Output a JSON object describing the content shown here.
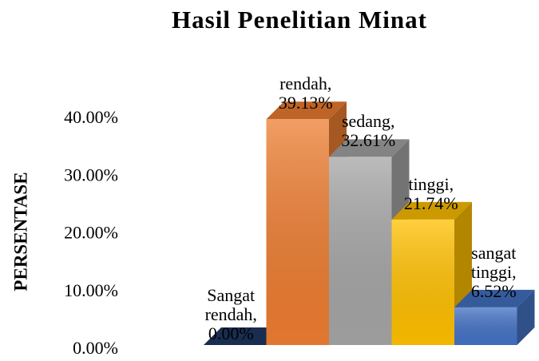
{
  "chart_data": {
    "type": "bar3d",
    "title": "Hasil Penelitian Minat",
    "ylabel": "PERSENTASE",
    "values": [
      0,
      39.13,
      32.61,
      21.74,
      6.52
    ],
    "value_labels": [
      "Sangat rendah, 0.00%",
      "rendah, 39.13%",
      "sedang, 32.61%",
      "tinggi, 21.74%",
      "sangat tinggi, 6.52%"
    ],
    "colors": [
      "#1f3864",
      "#ed7d31",
      "#a5a5a5",
      "#ffc000",
      "#4472c4"
    ],
    "ylim": [
      0,
      40
    ],
    "yticks": [
      {
        "value": 0,
        "label": "0.00%"
      },
      {
        "value": 10,
        "label": "10.00%"
      },
      {
        "value": 20,
        "label": "20.00%"
      },
      {
        "value": 30,
        "label": "30.00%"
      },
      {
        "value": 40,
        "label": "40.00%"
      }
    ],
    "grid": false
  }
}
